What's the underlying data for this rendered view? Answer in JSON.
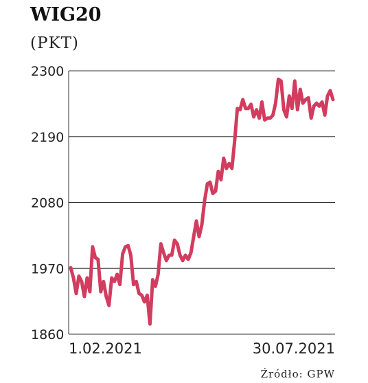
{
  "chart_data": {
    "type": "line",
    "title": "WIG20",
    "subtitle": "(PKT)",
    "source": "Źródło: GPW",
    "categories": [
      "1.02.2021",
      null,
      null,
      null,
      null,
      null,
      null,
      null,
      null,
      null,
      null,
      null,
      null,
      null,
      null,
      null,
      null,
      null,
      null,
      null,
      null,
      null,
      null,
      null,
      null,
      null,
      null,
      null,
      null,
      null,
      null,
      null,
      null,
      null,
      null,
      null,
      null,
      null,
      null,
      null,
      null,
      null,
      null,
      null,
      null,
      null,
      null,
      null,
      null,
      null,
      null,
      null,
      null,
      null,
      null,
      null,
      null,
      null,
      null,
      null,
      null,
      null,
      null,
      null,
      null,
      null,
      null,
      null,
      null,
      null,
      null,
      null,
      null,
      null,
      null,
      null,
      null,
      null,
      null,
      null,
      null,
      null,
      null,
      null,
      null,
      null,
      null,
      null,
      null,
      null,
      null,
      null,
      null,
      null,
      null,
      null,
      "30.07.2021"
    ],
    "series": [
      {
        "color": "#d23d5f",
        "values": [
          1971,
          1954,
          1928,
          1957,
          1948,
          1923,
          1954,
          1931,
          2006,
          1988,
          1985,
          1931,
          1948,
          1923,
          1908,
          1954,
          1948,
          1960,
          1943,
          1994,
          2006,
          2008,
          1992,
          1943,
          1948,
          1928,
          1925,
          1914,
          1925,
          1877,
          1951,
          1940,
          1960,
          2011,
          1996,
          1983,
          1992,
          1992,
          2017,
          2011,
          1992,
          1983,
          1992,
          1985,
          1996,
          2023,
          2049,
          2023,
          2043,
          2083,
          2111,
          2114,
          2095,
          2099,
          2132,
          2118,
          2154,
          2137,
          2145,
          2137,
          2183,
          2237,
          2235,
          2252,
          2237,
          2237,
          2244,
          2223,
          2235,
          2221,
          2248,
          2218,
          2221,
          2221,
          2226,
          2246,
          2286,
          2283,
          2235,
          2223,
          2258,
          2237,
          2283,
          2235,
          2269,
          2246,
          2252,
          2255,
          2221,
          2241,
          2246,
          2241,
          2248,
          2226,
          2258,
          2267,
          2252
        ]
      }
    ],
    "ylim": [
      1860,
      2300
    ],
    "yticks": [
      1860,
      1970,
      2080,
      2190,
      2300
    ],
    "grid": true
  }
}
